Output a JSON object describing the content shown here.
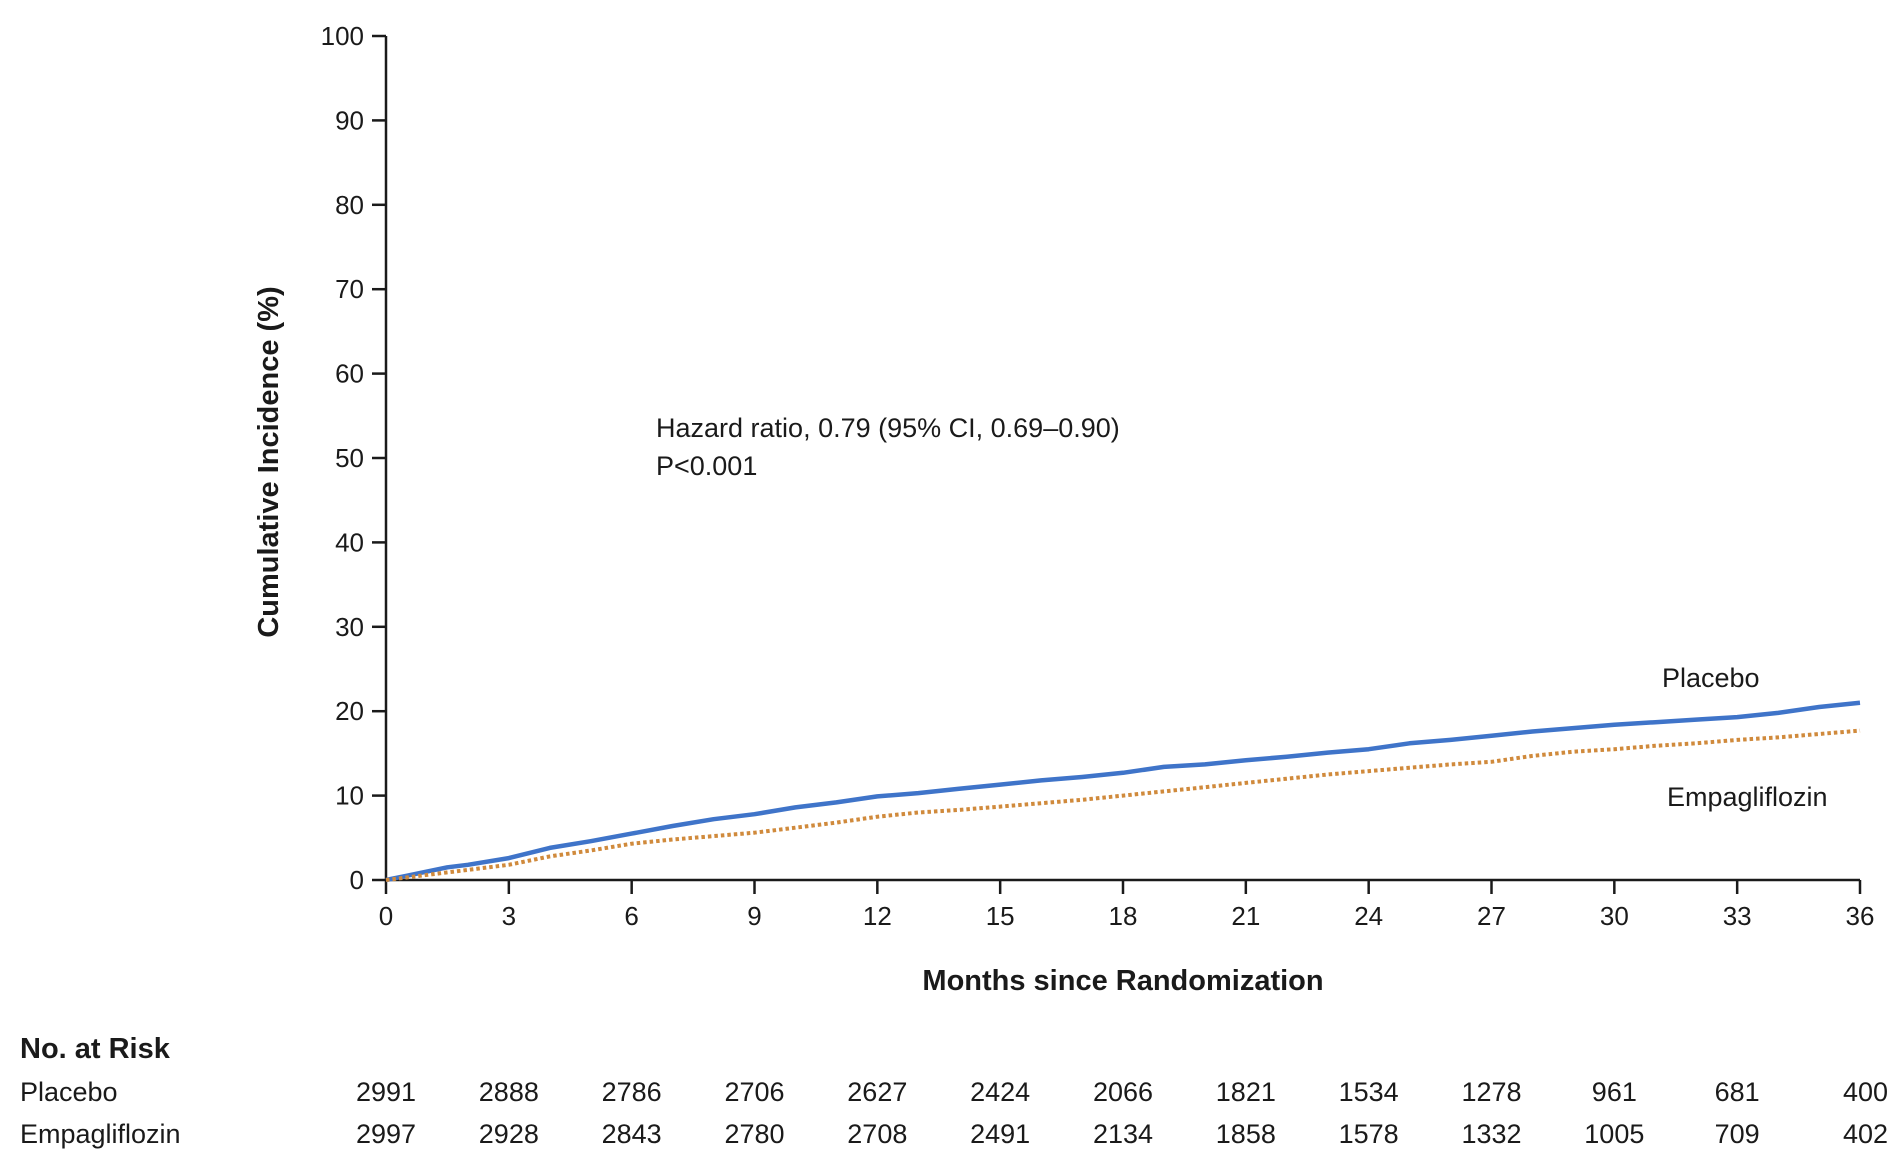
{
  "chart_data": {
    "type": "line",
    "title": "",
    "xlabel": "Months since Randomization",
    "ylabel": "Cumulative Incidence (%)",
    "xlim": [
      0,
      36
    ],
    "ylim": [
      0,
      100
    ],
    "x_ticks": [
      "0",
      "3",
      "6",
      "9",
      "12",
      "15",
      "18",
      "21",
      "24",
      "27",
      "30",
      "33",
      "36"
    ],
    "y_ticks": [
      "0",
      "10",
      "20",
      "30",
      "40",
      "50",
      "60",
      "70",
      "80",
      "90",
      "100"
    ],
    "grid": false,
    "annotation": {
      "line1": "Hazard ratio, 0.79 (95% CI, 0.69–0.90)",
      "line2": "P<0.001"
    },
    "series": [
      {
        "name": "Placebo",
        "color": "#3f74c9",
        "style": "solid",
        "x": [
          0,
          0.5,
          1,
          1.5,
          2,
          3,
          4,
          5,
          6,
          7,
          8,
          9,
          10,
          11,
          12,
          13,
          14,
          15,
          16,
          17,
          18,
          19,
          20,
          21,
          22,
          23,
          24,
          25,
          26,
          27,
          28,
          29,
          30,
          31,
          32,
          33,
          34,
          35,
          36
        ],
        "y": [
          0,
          0.5,
          1.0,
          1.5,
          1.8,
          2.6,
          3.8,
          4.6,
          5.5,
          6.4,
          7.2,
          7.8,
          8.6,
          9.2,
          9.9,
          10.3,
          10.8,
          11.3,
          11.8,
          12.2,
          12.7,
          13.4,
          13.7,
          14.2,
          14.6,
          15.1,
          15.5,
          16.2,
          16.6,
          17.1,
          17.6,
          18.0,
          18.4,
          18.7,
          19.0,
          19.3,
          19.8,
          20.5,
          21.0
        ]
      },
      {
        "name": "Empagliflozin",
        "color": "#d08a3c",
        "style": "dotted",
        "x": [
          0,
          0.5,
          1,
          1.5,
          2,
          3,
          4,
          5,
          6,
          7,
          8,
          9,
          10,
          11,
          12,
          13,
          14,
          15,
          16,
          17,
          18,
          19,
          20,
          21,
          22,
          23,
          24,
          25,
          26,
          27,
          28,
          29,
          30,
          31,
          32,
          33,
          34,
          35,
          36
        ],
        "y": [
          0,
          0.3,
          0.6,
          0.9,
          1.2,
          1.8,
          2.8,
          3.5,
          4.3,
          4.8,
          5.2,
          5.6,
          6.2,
          6.8,
          7.5,
          8.0,
          8.3,
          8.7,
          9.1,
          9.5,
          10.0,
          10.5,
          11.0,
          11.5,
          12.0,
          12.5,
          12.9,
          13.3,
          13.7,
          14.0,
          14.7,
          15.2,
          15.5,
          15.9,
          16.2,
          16.6,
          16.9,
          17.3,
          17.7
        ]
      }
    ]
  },
  "risk_table": {
    "title": "No. at Risk",
    "rows": [
      {
        "label": "Placebo",
        "values": [
          "2991",
          "2888",
          "2786",
          "2706",
          "2627",
          "2424",
          "2066",
          "1821",
          "1534",
          "1278",
          "961",
          "681",
          "400"
        ]
      },
      {
        "label": "Empagliflozin",
        "values": [
          "2997",
          "2928",
          "2843",
          "2780",
          "2708",
          "2491",
          "2134",
          "1858",
          "1578",
          "1332",
          "1005",
          "709",
          "402"
        ]
      }
    ]
  }
}
